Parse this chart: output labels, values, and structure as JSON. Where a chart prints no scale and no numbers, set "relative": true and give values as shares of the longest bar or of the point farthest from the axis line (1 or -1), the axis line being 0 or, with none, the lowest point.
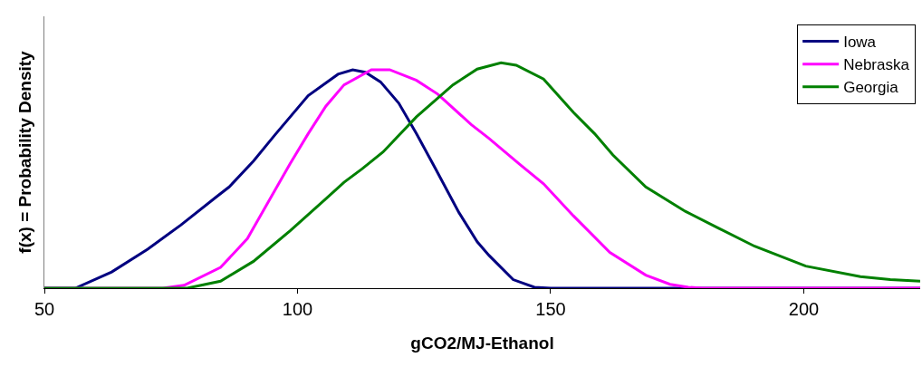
{
  "chart_data": {
    "type": "line",
    "xlabel": "gCO2/MJ-Ethanol",
    "ylabel": "f(x) = Probability Density",
    "relative": true,
    "xlim": [
      50,
      223
    ],
    "xticks": [
      50,
      100,
      150,
      200
    ],
    "legend": "top right",
    "marker": "none",
    "line_style": "solid",
    "series": [
      {
        "name": "Iowa",
        "color": "#000080",
        "x": [
          50,
          56.1,
          63.3,
          70.4,
          77.0,
          84.2,
          86.5,
          91.3,
          95.5,
          102.1,
          108.0,
          110.9,
          113.4,
          116.4,
          120.0,
          123.5,
          127.1,
          131.9,
          135.5,
          137.8,
          142.6,
          146.8,
          150,
          223
        ],
        "values": [
          0,
          0,
          0.072,
          0.173,
          0.281,
          0.409,
          0.449,
          0.564,
          0.679,
          0.854,
          0.949,
          0.969,
          0.958,
          0.915,
          0.821,
          0.685,
          0.537,
          0.335,
          0.206,
          0.146,
          0.038,
          0.004,
          0,
          0
        ]
      },
      {
        "name": "Nebraska",
        "color": "#ff00ff",
        "x": [
          50,
          73.4,
          77.6,
          84.8,
          90.1,
          93.7,
          98.5,
          102.1,
          105.6,
          109.2,
          114.6,
          118.2,
          123.5,
          127.7,
          134.3,
          137.8,
          143.8,
          148.6,
          154.5,
          161.7,
          168.8,
          173.6,
          177.2,
          180,
          223
        ],
        "values": [
          0,
          0,
          0.013,
          0.092,
          0.22,
          0.362,
          0.551,
          0.685,
          0.807,
          0.902,
          0.969,
          0.969,
          0.922,
          0.861,
          0.726,
          0.665,
          0.551,
          0.463,
          0.321,
          0.159,
          0.058,
          0.017,
          0.004,
          0,
          0
        ]
      },
      {
        "name": "Georgia",
        "color": "#008000",
        "x": [
          50,
          78.2,
          84.8,
          91.3,
          98.5,
          105.6,
          109.2,
          112.8,
          116.9,
          123.5,
          130.7,
          135.5,
          140.2,
          143.2,
          148.6,
          154.5,
          158.7,
          162.3,
          168.8,
          176.6,
          183.1,
          190.3,
          200.4,
          211.2,
          217.1,
          223
        ],
        "values": [
          0,
          0,
          0.031,
          0.119,
          0.254,
          0.396,
          0.47,
          0.53,
          0.604,
          0.76,
          0.902,
          0.972,
          1,
          0.989,
          0.928,
          0.78,
          0.685,
          0.591,
          0.449,
          0.341,
          0.267,
          0.186,
          0.098,
          0.051,
          0.038,
          0.031
        ]
      }
    ]
  }
}
